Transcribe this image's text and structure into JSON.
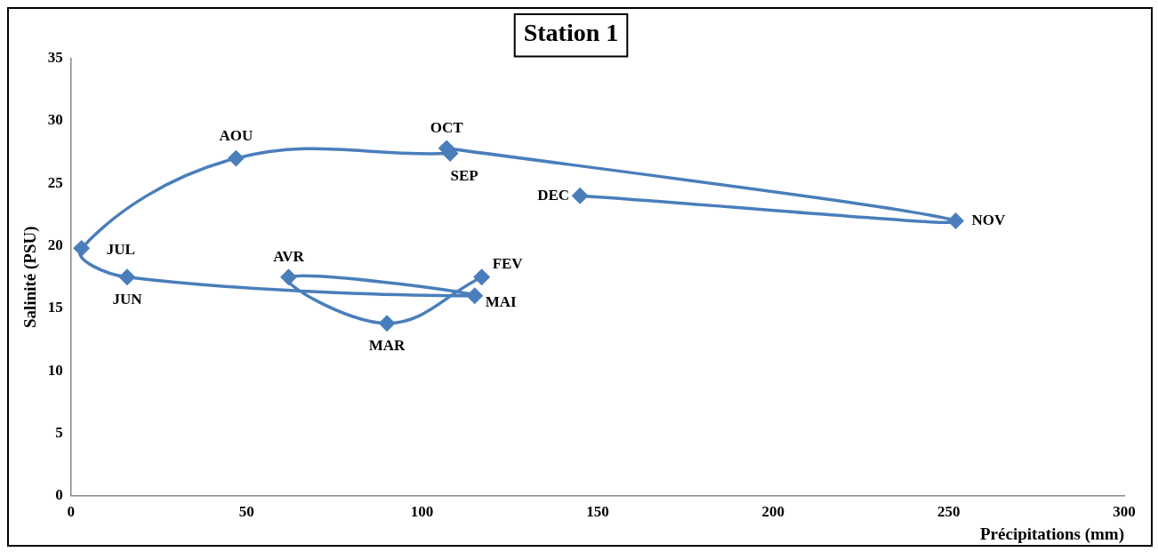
{
  "chart_data": {
    "type": "line",
    "title": "Station 1",
    "xlabel": "Précipitations (mm)",
    "ylabel": "Salinité (PSU)",
    "x": [
      117,
      90,
      62,
      115,
      16,
      3,
      47,
      108,
      107,
      252,
      145
    ],
    "series": [
      {
        "color": "#4a7ebb",
        "values": [
          17.5,
          13.8,
          17.5,
          16,
          17.5,
          19.8,
          27,
          27.4,
          27.8,
          22,
          24
        ]
      }
    ],
    "annotations": [
      {
        "text": "FEV",
        "x": 117,
        "y": 17.5
      },
      {
        "text": "MAR",
        "x": 90,
        "y": 13.8
      },
      {
        "text": "AVR",
        "x": 62,
        "y": 17.5
      },
      {
        "text": "MAI",
        "x": 115,
        "y": 16
      },
      {
        "text": "JUN",
        "x": 16,
        "y": 17.5
      },
      {
        "text": "JUL",
        "x": 3,
        "y": 19.8
      },
      {
        "text": "AOU",
        "x": 47,
        "y": 27
      },
      {
        "text": "SEP",
        "x": 108,
        "y": 27.4
      },
      {
        "text": "OCT",
        "x": 107,
        "y": 27.8
      },
      {
        "text": "NOV",
        "x": 252,
        "y": 22
      },
      {
        "text": "DEC",
        "x": 145,
        "y": 24
      }
    ],
    "xlim": [
      0,
      300
    ],
    "xticks": [
      0,
      50,
      100,
      150,
      200,
      250,
      300
    ],
    "ylim": [
      0,
      35
    ],
    "yticks": [
      0,
      5,
      10,
      15,
      20,
      25,
      30,
      35
    ],
    "grid": false,
    "legend": false,
    "marker": "diamond",
    "line_style": "solid"
  }
}
